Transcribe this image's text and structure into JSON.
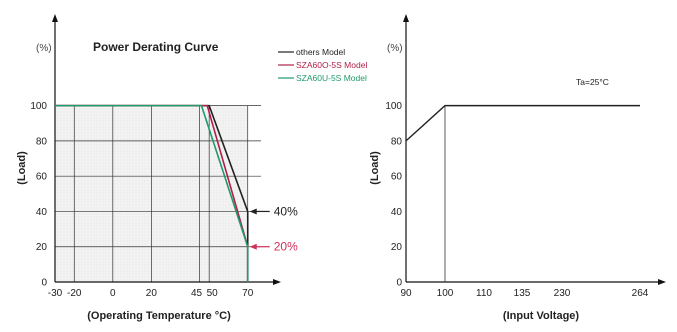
{
  "chart_data": [
    {
      "type": "line",
      "title": "Power Derating Curve",
      "xlabel": "(Operating Temperature °C)",
      "ylabel": "(Load)",
      "y_unit": "(%)",
      "grid": true,
      "legend_position": "top-right",
      "xlim": [
        -30,
        80
      ],
      "ylim": [
        0,
        110
      ],
      "x_ticks": [
        {
          "value": -30,
          "label": "-30"
        },
        {
          "value": -20,
          "label": "-20"
        },
        {
          "value": 0,
          "label": "0"
        },
        {
          "value": 20,
          "label": "20"
        },
        {
          "value": 45,
          "label": "45"
        },
        {
          "value": 50,
          "label": "50"
        },
        {
          "value": 70,
          "label": "70"
        }
      ],
      "y_ticks": [
        0,
        20,
        40,
        60,
        80,
        100
      ],
      "series": [
        {
          "name": "others Model",
          "color": "#222222",
          "x": [
            -30,
            50,
            70,
            70
          ],
          "y": [
            100,
            100,
            40,
            0
          ]
        },
        {
          "name": "SZA60O-5S Model",
          "color": "#b0204a",
          "x": [
            -30,
            49,
            70,
            70
          ],
          "y": [
            100,
            100,
            20,
            0
          ]
        },
        {
          "name": "SZA60U-5S Model",
          "color": "#1f9a6a",
          "x": [
            -30,
            46,
            70,
            70
          ],
          "y": [
            100,
            100,
            20,
            0
          ]
        }
      ],
      "annotations": [
        {
          "text": "40%",
          "x": 70,
          "y": 40,
          "color": "#222222"
        },
        {
          "text": "20%",
          "x": 70,
          "y": 20,
          "color": "#d0305a"
        }
      ]
    },
    {
      "type": "line",
      "title": "",
      "xlabel": "(Input Voltage)",
      "ylabel": "(Load)",
      "y_unit": "(%)",
      "grid": false,
      "x_scale": "categorical-ticks",
      "x_ticks": [
        "90",
        "100",
        "110",
        "135",
        "230",
        "264"
      ],
      "y_ticks": [
        0,
        20,
        40,
        60,
        80,
        100
      ],
      "ylim": [
        0,
        110
      ],
      "condition_label": "Ta=25°C",
      "series": [
        {
          "name": "",
          "color": "#222222",
          "x": [
            "90",
            "100",
            "264"
          ],
          "y": [
            80,
            100,
            100
          ]
        }
      ]
    }
  ]
}
